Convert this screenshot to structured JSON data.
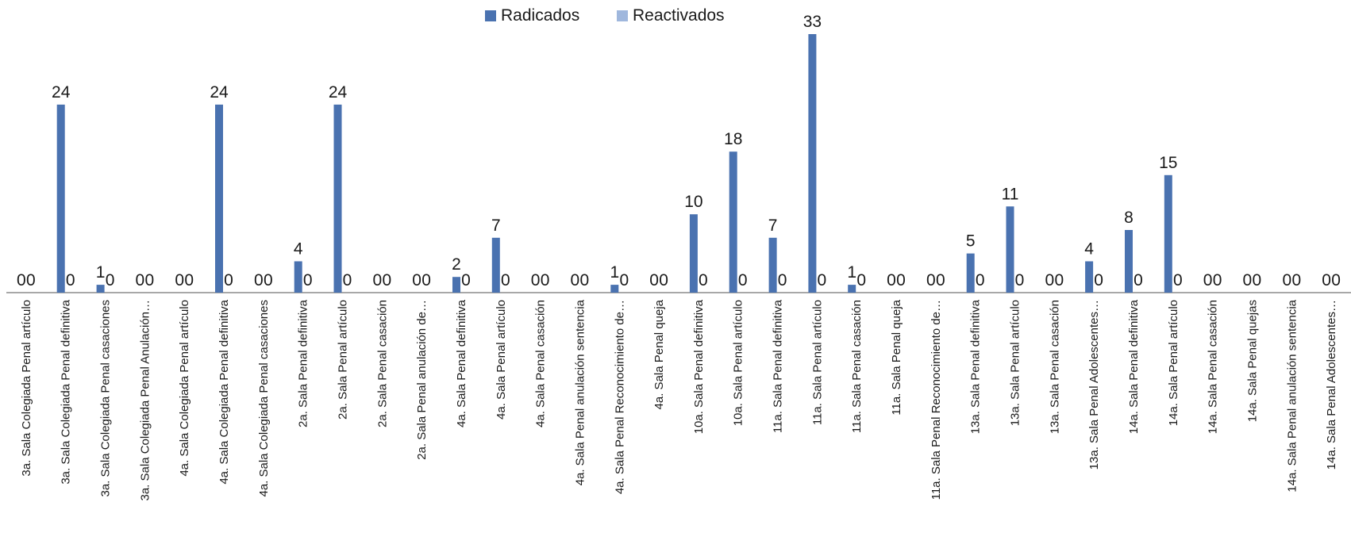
{
  "chart_data": {
    "type": "bar",
    "title": "",
    "xlabel": "",
    "ylabel": "",
    "ylim": [
      0,
      33
    ],
    "grid": false,
    "legend_position": "top-center",
    "categories": [
      "3a. Sala Colegiada Penal artículo",
      "3a. Sala Colegiada Penal definitiva",
      "3a. Sala Colegiada Penal casaciones",
      "3a. Sala Colegiada Penal Anulación…",
      "4a. Sala Colegiada Penal artículo",
      "4a. Sala Colegiada Penal definitiva",
      "4a. Sala Colegiada Penal casaciones",
      "2a. Sala Penal definitiva",
      "2a. Sala Penal artículo",
      "2a. Sala Penal casación",
      "2a. Sala Penal anulación de…",
      "4a. Sala Penal definitiva",
      "4a. Sala Penal artículo",
      "4a. Sala Penal casación",
      "4a. Sala Penal anulación sentencia",
      "4a. Sala Penal Reconocimiento de…",
      "4a. Sala Penal queja",
      "10a. Sala Penal definitiva",
      "10a. Sala Penal artículo",
      "11a. Sala Penal definitiva",
      "11a. Sala Penal artículo",
      "11a. Sala Penal casación",
      "11a. Sala Penal queja",
      "11a. Sala Penal Reconocimiento de…",
      "13a. Sala Penal definitiva",
      "13a. Sala Penal artículo",
      "13a. Sala Penal casación",
      "13a. Sala Penal Adolescentes…",
      "14a. Sala Penal definitiva",
      "14a. Sala Penal artículo",
      "14a. Sala Penal casación",
      "14a. Sala Penal quejas",
      "14a. Sala Penal anulación sentencia",
      "14a. Sala Penal Adolescentes…"
    ],
    "series": [
      {
        "name": "Radicados",
        "color": "#4a72b0",
        "values": [
          0,
          24,
          1,
          0,
          0,
          24,
          0,
          4,
          24,
          0,
          0,
          2,
          7,
          0,
          0,
          1,
          0,
          10,
          18,
          7,
          33,
          1,
          0,
          0,
          5,
          11,
          0,
          4,
          8,
          15,
          0,
          0,
          0,
          0
        ]
      },
      {
        "name": "Reactivados",
        "color": "#9fb7dd",
        "values": [
          0,
          0,
          0,
          0,
          0,
          0,
          0,
          0,
          0,
          0,
          0,
          0,
          0,
          0,
          0,
          0,
          0,
          0,
          0,
          0,
          0,
          0,
          0,
          0,
          0,
          0,
          0,
          0,
          0,
          0,
          0,
          0,
          0,
          0
        ]
      }
    ]
  }
}
